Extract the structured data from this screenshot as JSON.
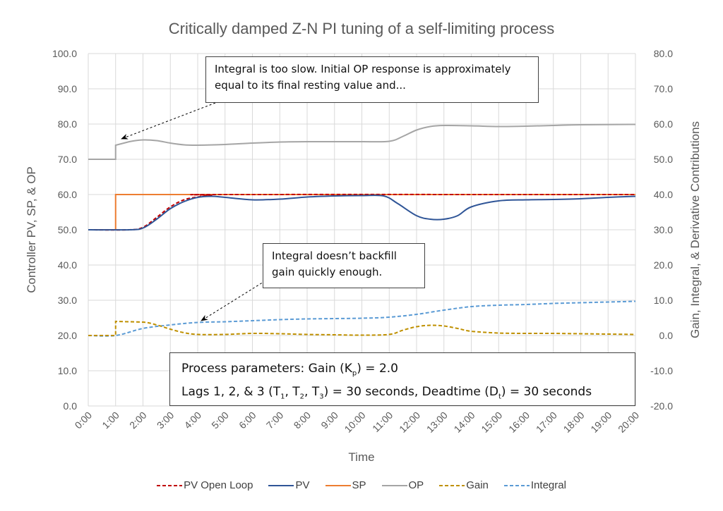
{
  "chart_data": {
    "type": "line",
    "title": "Critically damped Z-N PI tuning of a self-limiting process",
    "xlabel": "Time",
    "ylabel_left": "Controller PV, SP, & OP",
    "ylabel_right": "Gain, Integral, & Derivative Contributions",
    "xlim": [
      0,
      20
    ],
    "ylim_left": [
      0,
      100
    ],
    "ylim_right": [
      -20,
      80
    ],
    "x_tick_labels": [
      "0:00",
      "1:00",
      "2:00",
      "3:00",
      "4:00",
      "5:00",
      "6:00",
      "7:00",
      "8:00",
      "9:00",
      "10:00",
      "11:00",
      "12:00",
      "13:00",
      "14:00",
      "15:00",
      "16:00",
      "17:00",
      "18:00",
      "19:00",
      "20:00"
    ],
    "y_left_tick_labels": [
      "0.0",
      "10.0",
      "20.0",
      "30.0",
      "40.0",
      "50.0",
      "60.0",
      "70.0",
      "80.0",
      "90.0",
      "100.0"
    ],
    "y_right_tick_labels": [
      "-20.0",
      "-10.0",
      "0.0",
      "10.0",
      "20.0",
      "30.0",
      "40.0",
      "50.0",
      "60.0",
      "70.0",
      "80.0"
    ],
    "grid": true,
    "legend_placement": "bottom",
    "series": [
      {
        "name": "PV Open Loop",
        "axis": "left",
        "color": "#c00000",
        "dashed": true,
        "x": [
          0,
          1.5,
          2,
          2.5,
          3,
          3.5,
          4,
          4.5,
          5,
          20
        ],
        "y": [
          50,
          50,
          50.7,
          53.5,
          56.5,
          58.5,
          59.3,
          59.8,
          60,
          60
        ]
      },
      {
        "name": "PV",
        "axis": "left",
        "color": "#2f5597",
        "dashed": false,
        "x": [
          0,
          1.5,
          2,
          2.5,
          3,
          3.5,
          4,
          4.5,
          5,
          6,
          7,
          8,
          9,
          10,
          10.8,
          11.3,
          12,
          12.5,
          13,
          13.5,
          14,
          15,
          16,
          17,
          18,
          19,
          20
        ],
        "y": [
          50,
          50,
          50.5,
          53,
          56,
          58,
          59.2,
          59.5,
          59.2,
          58.5,
          58.7,
          59.3,
          59.6,
          59.7,
          59.6,
          57.5,
          54,
          53,
          53,
          54,
          56.5,
          58.2,
          58.5,
          58.6,
          58.8,
          59.2,
          59.5
        ]
      },
      {
        "name": "SP",
        "axis": "left",
        "color": "#ed7d31",
        "dashed": false,
        "step": true,
        "x": [
          0,
          1,
          1,
          20
        ],
        "y": [
          50,
          50,
          60,
          60
        ]
      },
      {
        "name": "OP",
        "axis": "left",
        "color": "#a5a5a5",
        "dashed": false,
        "x": [
          0,
          1,
          1,
          1.5,
          2,
          2.5,
          3,
          3.5,
          4,
          5,
          6,
          7,
          8,
          10,
          11,
          11.5,
          12,
          12.5,
          13,
          14,
          15,
          16,
          17,
          18,
          20
        ],
        "y": [
          70,
          70,
          74,
          75,
          75.5,
          75.3,
          74.6,
          74.1,
          74,
          74.2,
          74.6,
          74.9,
          75,
          75,
          75.1,
          76.5,
          78.3,
          79.3,
          79.6,
          79.5,
          79.3,
          79.4,
          79.6,
          79.8,
          79.9
        ]
      },
      {
        "name": "Gain",
        "axis": "right",
        "color": "#bf9000",
        "dashed": true,
        "x": [
          0,
          1,
          1,
          2,
          2.5,
          3,
          3.5,
          4,
          5,
          6,
          7,
          8,
          9,
          10,
          11,
          11.5,
          12,
          12.5,
          13,
          13.5,
          14,
          15,
          16,
          17,
          18,
          20
        ],
        "y": [
          0,
          0,
          4,
          3.8,
          3,
          1.8,
          0.8,
          0.3,
          0.3,
          0.6,
          0.5,
          0.3,
          0.2,
          0.1,
          0.3,
          1.5,
          2.5,
          2.9,
          2.7,
          2,
          1.2,
          0.7,
          0.6,
          0.6,
          0.5,
          0.3
        ]
      },
      {
        "name": "Integral",
        "axis": "right",
        "color": "#5b9bd5",
        "dashed": true,
        "x": [
          0,
          1,
          2,
          3,
          4,
          5,
          6,
          7,
          8,
          9,
          10,
          11,
          12,
          13,
          14,
          15,
          16,
          17,
          18,
          19,
          20
        ],
        "y": [
          0,
          0,
          2,
          3,
          3.7,
          3.9,
          4.2,
          4.5,
          4.7,
          4.8,
          4.9,
          5.2,
          6,
          7.2,
          8.2,
          8.6,
          8.8,
          9.1,
          9.3,
          9.5,
          9.7
        ]
      }
    ],
    "annotations": [
      {
        "text": "Integral is too slow.  Initial OP response is approximately equal to its final resting value and...",
        "points_to_x": 1.1,
        "points_to_series": "OP"
      },
      {
        "text": "Integral doesn’t backfill gain quickly enough.",
        "points_to_x": 4,
        "points_to_series": "Integral"
      }
    ],
    "params_box": {
      "l1a": "Process parameters:  Gain (K",
      "l1s": "p",
      "l1b": ") = 2.0",
      "l2a": "Lags 1, 2, & 3 (T",
      "l2s1": "1",
      "l2b": ", T",
      "l2s2": "2",
      "l2c": ", T",
      "l2s3": "3",
      "l2d": ") = 30 seconds, Deadtime (D",
      "l2s4": "t",
      "l2e": ") = 30 seconds"
    }
  }
}
